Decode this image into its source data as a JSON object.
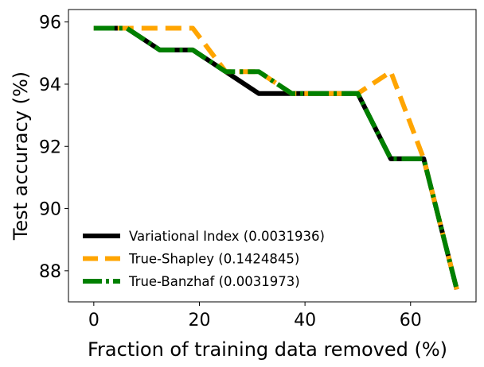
{
  "chart_data": {
    "type": "line",
    "xlabel": "Fraction of training data removed (%)",
    "ylabel": "Test accuracy (%)",
    "xlim": [
      -4.8,
      72.4
    ],
    "ylim": [
      87.0,
      96.4
    ],
    "xticks": [
      0,
      20,
      40,
      60
    ],
    "yticks": [
      88,
      90,
      92,
      94,
      96
    ],
    "grid": false,
    "legend_position": "lower-left",
    "series": [
      {
        "name": "Variational Index (0.0031936)",
        "color": "#000000",
        "style": "solid",
        "x": [
          0,
          6.25,
          12.5,
          18.75,
          25,
          31.25,
          37.5,
          43.75,
          50,
          56.25,
          62.5,
          68.75
        ],
        "y": [
          95.8,
          95.8,
          95.1,
          95.1,
          94.4,
          93.7,
          93.7,
          93.7,
          93.7,
          91.6,
          91.6,
          87.4
        ]
      },
      {
        "name": "True-Shapley (0.1424845)",
        "color": "#ffa500",
        "style": "dashed",
        "x": [
          0,
          6.25,
          12.5,
          18.75,
          25,
          31.25,
          37.5,
          43.75,
          50,
          56.25,
          62.5,
          68.75
        ],
        "y": [
          95.8,
          95.8,
          95.8,
          95.8,
          94.4,
          94.4,
          93.7,
          93.7,
          93.7,
          94.4,
          91.6,
          87.4
        ]
      },
      {
        "name": "True-Banzhaf (0.0031973)",
        "color": "#008000",
        "style": "dashdot",
        "x": [
          0,
          6.25,
          12.5,
          18.75,
          25,
          31.25,
          37.5,
          43.75,
          50,
          56.25,
          62.5,
          68.75
        ],
        "y": [
          95.8,
          95.8,
          95.1,
          95.1,
          94.4,
          94.4,
          93.7,
          93.7,
          93.7,
          91.6,
          91.6,
          87.4
        ]
      }
    ]
  }
}
